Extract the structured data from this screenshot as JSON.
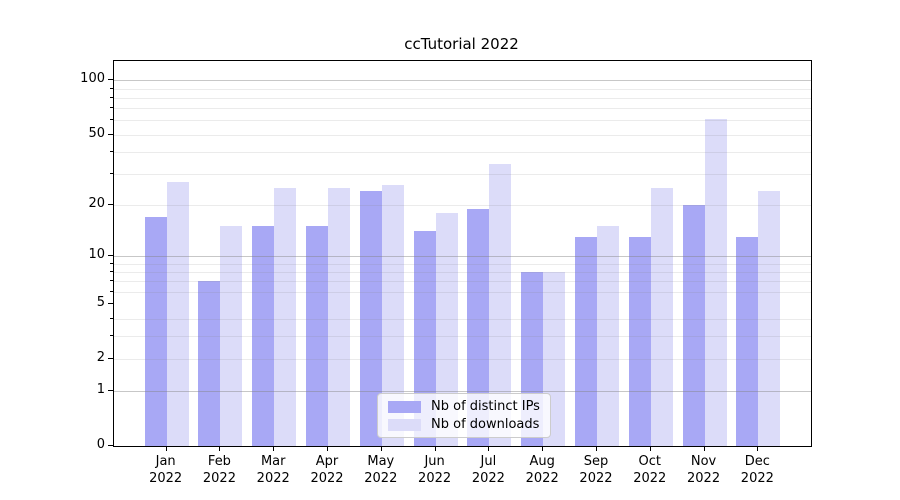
{
  "chart_data": {
    "type": "bar",
    "title": "ccTutorial 2022",
    "categories": [
      "Jan 2022",
      "Feb 2022",
      "Mar 2022",
      "Apr 2022",
      "May 2022",
      "Jun 2022",
      "Jul 2022",
      "Aug 2022",
      "Sep 2022",
      "Oct 2022",
      "Nov 2022",
      "Dec 2022"
    ],
    "series": [
      {
        "name": "Nb of distinct IPs",
        "color": "#a8a8f5",
        "values": [
          17,
          7,
          15,
          15,
          24,
          14,
          19,
          8,
          13,
          13,
          20,
          13
        ]
      },
      {
        "name": "Nb of downloads",
        "color": "#dcdcf9",
        "values": [
          27,
          15,
          25,
          25,
          26,
          18,
          34,
          8,
          15,
          25,
          61,
          24
        ]
      }
    ],
    "xlabel": "",
    "ylabel": "",
    "y_scale": "log10(value+1)",
    "ylim": [
      0,
      130
    ],
    "y_tick_labels": [
      100,
      50,
      20,
      10,
      5,
      2,
      1,
      0
    ],
    "y_major_gridlines": [
      1,
      10,
      100
    ],
    "y_minor_gridlines": [
      2,
      3,
      4,
      6,
      7,
      8,
      9,
      20,
      30,
      40,
      50,
      60,
      70,
      80,
      90
    ],
    "grid": true,
    "legend_position": "lower center"
  }
}
